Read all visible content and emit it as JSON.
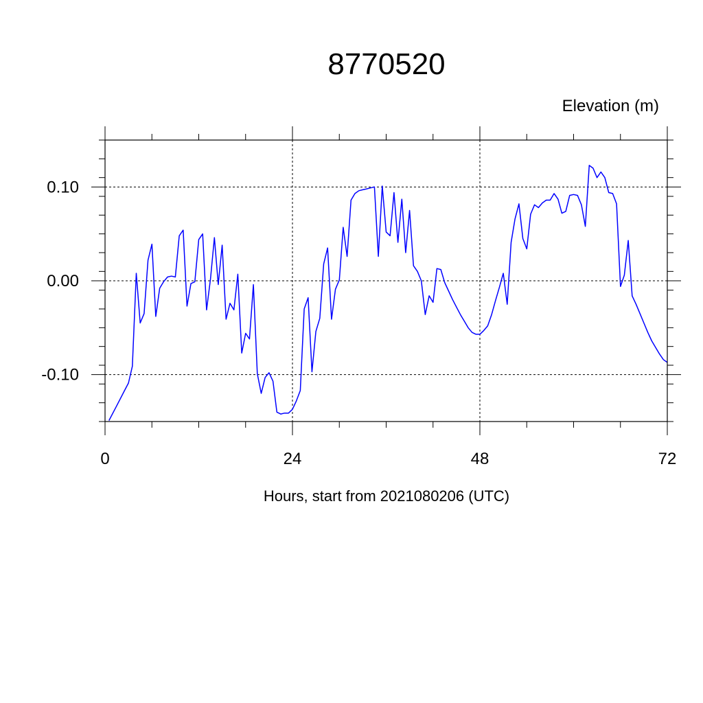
{
  "chart_data": {
    "type": "line",
    "title": "8770520",
    "unit_label": "Elevation (m)",
    "xlabel": "Hours, start from 2021080206 (UTC)",
    "xlim": [
      0,
      72
    ],
    "ylim": [
      -0.15,
      0.15
    ],
    "x_ticks": [
      0,
      24,
      48,
      72
    ],
    "x_tick_labels": [
      "0",
      "24",
      "48",
      "72"
    ],
    "y_ticks": [
      -0.1,
      0.0,
      0.1
    ],
    "y_tick_labels": [
      "-0.10",
      "0.00",
      "0.10"
    ],
    "grid": "dashed at major ticks",
    "series": [
      {
        "color": "#0000ff",
        "x": [
          0.5,
          1.5,
          2.5,
          3.0,
          3.5,
          4.0,
          4.5,
          5.0,
          5.5,
          6.0,
          6.5,
          7.0,
          7.5,
          8.0,
          8.5,
          9.0,
          9.5,
          10.0,
          10.5,
          11.0,
          11.5,
          12.0,
          12.5,
          13.0,
          13.5,
          14.0,
          14.5,
          15.0,
          15.5,
          16.0,
          16.5,
          17.0,
          17.5,
          18.0,
          18.5,
          19.0,
          19.5,
          20.0,
          20.5,
          21.0,
          21.5,
          22.0,
          22.5,
          23.0,
          23.5,
          24.0,
          24.5,
          25.0,
          25.5,
          26.0,
          26.5,
          27.0,
          27.5,
          28.0,
          28.5,
          29.0,
          29.5,
          30.0,
          30.5,
          31.0,
          31.5,
          32.0,
          32.5,
          33.0,
          33.5,
          34.0,
          34.5,
          35.0,
          35.5,
          36.0,
          36.5,
          37.0,
          37.5,
          38.0,
          38.5,
          39.0,
          39.5,
          40.0,
          40.5,
          41.0,
          41.5,
          42.0,
          42.5,
          43.0,
          43.5,
          44.0,
          44.5,
          45.0,
          45.5,
          46.0,
          46.5,
          47.0,
          47.5,
          48.0,
          48.5,
          49.0,
          49.5,
          50.0,
          50.5,
          51.0,
          51.5,
          52.0,
          52.5,
          53.0,
          53.5,
          54.0,
          54.5,
          55.0,
          55.5,
          56.0,
          56.5,
          57.0,
          57.5,
          58.0,
          58.5,
          59.0,
          59.5,
          60.0,
          60.5,
          61.0,
          61.5,
          62.0,
          62.5,
          63.0,
          63.5,
          64.0,
          64.5,
          65.0,
          65.5,
          66.0,
          66.5,
          67.0,
          67.5,
          68.0,
          68.5,
          69.0,
          69.5,
          70.0,
          70.5,
          71.0,
          71.5,
          72.0
        ],
        "y": [
          -0.149,
          -0.133,
          -0.117,
          -0.109,
          -0.091,
          0.008,
          -0.045,
          -0.035,
          0.022,
          0.039,
          -0.038,
          -0.008,
          -0.001,
          0.004,
          0.005,
          0.004,
          0.048,
          0.054,
          -0.027,
          -0.003,
          -0.001,
          0.044,
          0.05,
          -0.031,
          0.002,
          0.046,
          -0.004,
          0.038,
          -0.041,
          -0.024,
          -0.031,
          0.007,
          -0.077,
          -0.056,
          -0.062,
          -0.004,
          -0.099,
          -0.12,
          -0.103,
          -0.098,
          -0.107,
          -0.14,
          -0.142,
          -0.141,
          -0.141,
          -0.137,
          -0.128,
          -0.117,
          -0.03,
          -0.018,
          -0.097,
          -0.054,
          -0.04,
          0.018,
          0.035,
          -0.041,
          -0.009,
          0.001,
          0.057,
          0.026,
          0.086,
          0.093,
          0.096,
          0.097,
          0.098,
          0.099,
          0.1,
          0.026,
          0.101,
          0.052,
          0.048,
          0.094,
          0.041,
          0.087,
          0.03,
          0.075,
          0.016,
          0.01,
          0.0,
          -0.036,
          -0.016,
          -0.023,
          0.013,
          0.012,
          -0.002,
          -0.011,
          -0.02,
          -0.028,
          -0.036,
          -0.043,
          -0.05,
          -0.055,
          -0.057,
          -0.057,
          -0.053,
          -0.048,
          -0.036,
          -0.021,
          -0.007,
          0.008,
          -0.025,
          0.041,
          0.066,
          0.082,
          0.045,
          0.034,
          0.071,
          0.081,
          0.078,
          0.083,
          0.086,
          0.086,
          0.093,
          0.087,
          0.072,
          0.074,
          0.091,
          0.092,
          0.091,
          0.081,
          0.058,
          0.123,
          0.12,
          0.11,
          0.116,
          0.11,
          0.094,
          0.093,
          0.082,
          -0.006,
          0.006,
          0.043,
          -0.016,
          -0.025,
          -0.035,
          -0.045,
          -0.055,
          -0.064,
          -0.071,
          -0.078,
          -0.084,
          -0.087
        ]
      }
    ]
  }
}
